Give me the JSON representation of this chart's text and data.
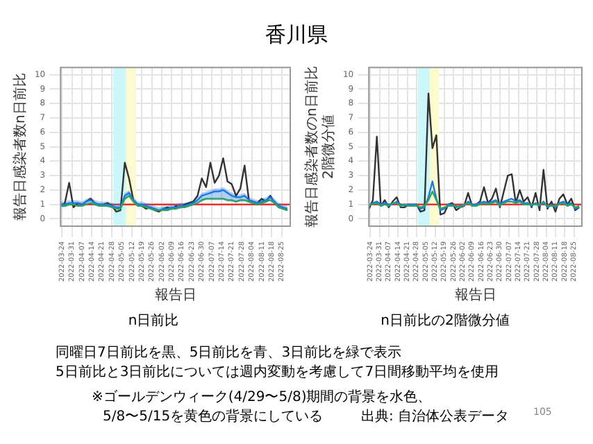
{
  "chart_data": [
    {
      "type": "line",
      "title": "香川県",
      "subtitle": "n日前比",
      "xlabel": "報告日",
      "ylabel": "報告日感染者数n日前比",
      "x": [
        "2022-03-23",
        "2022-03-26",
        "2022-03-29",
        "2022-04-01",
        "2022-04-04",
        "2022-04-07",
        "2022-04-10",
        "2022-04-13",
        "2022-04-16",
        "2022-04-19",
        "2022-04-22",
        "2022-04-25",
        "2022-04-28",
        "2022-05-01",
        "2022-05-04",
        "2022-05-07",
        "2022-05-10",
        "2022-05-13",
        "2022-05-16",
        "2022-05-19",
        "2022-05-22",
        "2022-05-25",
        "2022-05-28",
        "2022-05-31",
        "2022-06-03",
        "2022-06-06",
        "2022-06-09",
        "2022-06-12",
        "2022-06-15",
        "2022-06-18",
        "2022-06-21",
        "2022-06-24",
        "2022-06-27",
        "2022-06-30",
        "2022-07-03",
        "2022-07-06",
        "2022-07-09",
        "2022-07-12",
        "2022-07-15",
        "2022-07-18",
        "2022-07-21",
        "2022-07-24",
        "2022-07-27",
        "2022-07-30",
        "2022-08-02",
        "2022-08-05",
        "2022-08-08",
        "2022-08-11",
        "2022-08-14",
        "2022-08-17",
        "2022-08-20",
        "2022-08-23",
        "2022-08-26",
        "2022-08-29"
      ],
      "series": [
        {
          "color": "#333333",
          "values": [
            0.9,
            1.1,
            2.5,
            0.8,
            1.1,
            1.0,
            1.2,
            1.4,
            1.1,
            0.9,
            1.0,
            1.1,
            0.9,
            0.5,
            0.6,
            3.9,
            2.8,
            1.3,
            1.0,
            0.9,
            0.7,
            0.8,
            0.6,
            0.5,
            0.7,
            0.8,
            0.7,
            0.9,
            0.8,
            1.0,
            1.1,
            1.2,
            1.6,
            2.8,
            2.2,
            3.9,
            2.5,
            3.0,
            4.2,
            2.6,
            2.4,
            1.6,
            2.1,
            3.7,
            1.3,
            1.2,
            1.1,
            1.4,
            1.2,
            1.6,
            1.1,
            0.8,
            0.7,
            0.6
          ]
        },
        {
          "color": "#1e78e6",
          "values": [
            1.0,
            1.0,
            1.1,
            1.1,
            1.1,
            1.0,
            1.2,
            1.3,
            1.1,
            1.0,
            1.0,
            1.0,
            0.9,
            0.8,
            0.8,
            1.6,
            1.8,
            1.3,
            1.0,
            1.0,
            0.9,
            0.8,
            0.7,
            0.6,
            0.7,
            0.7,
            0.8,
            0.8,
            0.9,
            0.9,
            1.0,
            1.1,
            1.3,
            1.6,
            1.7,
            1.8,
            1.9,
            1.9,
            2.0,
            1.8,
            1.6,
            1.5,
            1.5,
            1.6,
            1.3,
            1.2,
            1.1,
            1.2,
            1.3,
            1.5,
            1.2,
            0.9,
            0.8,
            0.7
          ],
          "lower": [
            0.8,
            0.8,
            0.9,
            0.9,
            0.9,
            0.9,
            1.0,
            1.1,
            0.9,
            0.9,
            0.9,
            0.8,
            0.8,
            0.7,
            0.7,
            1.3,
            1.5,
            1.1,
            0.9,
            0.8,
            0.7,
            0.7,
            0.6,
            0.5,
            0.6,
            0.6,
            0.7,
            0.7,
            0.7,
            0.8,
            0.9,
            0.9,
            1.1,
            1.2,
            1.3,
            1.3,
            1.3,
            1.3,
            1.3,
            1.2,
            1.2,
            1.1,
            1.2,
            1.2,
            1.1,
            1.0,
            0.9,
            1.0,
            1.1,
            1.3,
            1.0,
            0.8,
            0.7,
            0.6
          ],
          "upper": [
            1.2,
            1.2,
            1.3,
            1.3,
            1.3,
            1.2,
            1.4,
            1.5,
            1.3,
            1.2,
            1.2,
            1.2,
            1.1,
            1.0,
            1.0,
            1.8,
            2.0,
            1.5,
            1.2,
            1.2,
            1.1,
            1.0,
            0.9,
            0.8,
            0.9,
            0.9,
            1.0,
            1.0,
            1.1,
            1.1,
            1.2,
            1.3,
            1.5,
            1.8,
            1.9,
            2.0,
            2.1,
            2.1,
            2.2,
            2.0,
            1.8,
            1.7,
            1.7,
            1.8,
            1.5,
            1.4,
            1.3,
            1.4,
            1.5,
            1.7,
            1.4,
            1.1,
            1.0,
            0.9
          ]
        },
        {
          "color": "#2ca25f",
          "values": [
            0.9,
            0.9,
            1.0,
            1.0,
            0.9,
            0.9,
            1.0,
            1.1,
            1.0,
            0.9,
            0.9,
            0.9,
            0.8,
            0.7,
            0.7,
            1.4,
            1.6,
            1.2,
            0.9,
            0.9,
            0.8,
            0.7,
            0.6,
            0.6,
            0.6,
            0.6,
            0.7,
            0.7,
            0.8,
            0.8,
            0.9,
            1.0,
            1.1,
            1.3,
            1.4,
            1.4,
            1.4,
            1.4,
            1.4,
            1.3,
            1.3,
            1.2,
            1.3,
            1.3,
            1.2,
            1.1,
            1.0,
            1.1,
            1.2,
            1.3,
            1.1,
            0.8,
            0.7,
            0.6
          ]
        }
      ],
      "xlim": [
        "2022-03-23",
        "2022-08-31"
      ],
      "xticks": [
        "2022-03-24",
        "2022-03-31",
        "2022-04-07",
        "2022-04-14",
        "2022-04-21",
        "2022-04-28",
        "2022-05-05",
        "2022-05-12",
        "2022-05-19",
        "2022-05-26",
        "2022-06-02",
        "2022-06-09",
        "2022-06-16",
        "2022-06-23",
        "2022-06-30",
        "2022-07-07",
        "2022-07-14",
        "2022-07-21",
        "2022-07-28",
        "2022-08-04",
        "2022-08-11",
        "2022-08-18",
        "2022-08-25"
      ],
      "ylim": [
        -0.5,
        10.5
      ],
      "yticks": [
        0,
        1,
        2,
        3,
        4,
        5,
        6,
        7,
        8,
        9,
        10
      ],
      "grid": true,
      "ref_lines": [
        {
          "axis": "y",
          "value": 1,
          "color": "#e8322d"
        }
      ],
      "bands": [
        {
          "axis": "x",
          "from": "2022-04-29",
          "to": "2022-05-08",
          "color": "#ccf7fa"
        },
        {
          "axis": "x",
          "from": "2022-05-08",
          "to": "2022-05-15",
          "color": "#fbfbcf"
        }
      ]
    },
    {
      "type": "line",
      "subtitle": "n日前比の2階微分値",
      "xlabel": "報告日",
      "ylabel": "報告日感染者数のn日前比\n2階微分値",
      "x": [
        "2022-03-23",
        "2022-03-26",
        "2022-03-29",
        "2022-04-01",
        "2022-04-04",
        "2022-04-07",
        "2022-04-10",
        "2022-04-13",
        "2022-04-16",
        "2022-04-19",
        "2022-04-22",
        "2022-04-25",
        "2022-04-28",
        "2022-05-01",
        "2022-05-04",
        "2022-05-07",
        "2022-05-10",
        "2022-05-13",
        "2022-05-16",
        "2022-05-19",
        "2022-05-22",
        "2022-05-25",
        "2022-05-28",
        "2022-05-31",
        "2022-06-03",
        "2022-06-06",
        "2022-06-09",
        "2022-06-12",
        "2022-06-15",
        "2022-06-18",
        "2022-06-21",
        "2022-06-24",
        "2022-06-27",
        "2022-06-30",
        "2022-07-03",
        "2022-07-06",
        "2022-07-09",
        "2022-07-12",
        "2022-07-15",
        "2022-07-18",
        "2022-07-21",
        "2022-07-24",
        "2022-07-27",
        "2022-07-30",
        "2022-08-02",
        "2022-08-05",
        "2022-08-08",
        "2022-08-11",
        "2022-08-14",
        "2022-08-17",
        "2022-08-20",
        "2022-08-23",
        "2022-08-26",
        "2022-08-29"
      ],
      "series": [
        {
          "color": "#333333",
          "values": [
            0.7,
            1.3,
            5.7,
            0.9,
            1.3,
            0.8,
            1.2,
            1.5,
            0.8,
            0.8,
            1.0,
            0.9,
            1.0,
            0.5,
            0.6,
            8.7,
            4.9,
            5.8,
            0.3,
            0.4,
            1.0,
            1.1,
            0.6,
            0.8,
            0.9,
            1.8,
            0.9,
            1.0,
            1.2,
            2.2,
            1.1,
            1.4,
            2.1,
            0.8,
            1.9,
            3.0,
            3.1,
            1.1,
            2.0,
            1.2,
            1.5,
            0.8,
            1.8,
            0.6,
            3.4,
            0.7,
            1.2,
            0.5,
            1.4,
            1.7,
            1.0,
            1.4,
            0.6,
            0.8
          ]
        },
        {
          "color": "#1e78e6",
          "values": [
            0.9,
            1.1,
            1.2,
            1.0,
            1.1,
            1.0,
            1.0,
            1.2,
            1.0,
            0.9,
            1.0,
            1.0,
            1.0,
            0.7,
            0.8,
            1.5,
            2.6,
            1.4,
            0.6,
            0.7,
            1.0,
            1.0,
            0.8,
            0.9,
            0.9,
            1.2,
            1.0,
            1.0,
            1.1,
            1.2,
            1.1,
            1.2,
            1.3,
            1.0,
            1.2,
            1.3,
            1.4,
            1.2,
            1.3,
            1.1,
            1.1,
            0.9,
            1.1,
            0.9,
            1.2,
            0.8,
            1.0,
            0.8,
            1.1,
            1.2,
            1.0,
            1.1,
            0.7,
            0.8
          ]
        },
        {
          "color": "#2ca25f",
          "values": [
            1.0,
            1.0,
            1.1,
            0.9,
            1.0,
            0.9,
            1.1,
            1.1,
            0.9,
            1.0,
            0.9,
            0.9,
            0.9,
            0.8,
            0.9,
            1.3,
            1.9,
            1.3,
            0.7,
            0.8,
            0.9,
            0.9,
            0.9,
            0.8,
            1.0,
            1.1,
            0.9,
            0.9,
            1.0,
            1.1,
            1.0,
            1.1,
            1.2,
            0.9,
            1.1,
            1.2,
            1.2,
            1.1,
            1.2,
            1.0,
            1.0,
            1.0,
            1.0,
            1.0,
            1.1,
            0.9,
            0.9,
            0.9,
            1.0,
            1.1,
            0.9,
            1.0,
            0.8,
            0.9
          ]
        }
      ],
      "xlim": [
        "2022-03-23",
        "2022-08-31"
      ],
      "xticks": [
        "2022-03-24",
        "2022-03-31",
        "2022-04-07",
        "2022-04-14",
        "2022-04-21",
        "2022-04-28",
        "2022-05-05",
        "2022-05-12",
        "2022-05-19",
        "2022-05-26",
        "2022-06-02",
        "2022-06-09",
        "2022-06-16",
        "2022-06-23",
        "2022-06-30",
        "2022-07-07",
        "2022-07-14",
        "2022-07-21",
        "2022-07-28",
        "2022-08-04",
        "2022-08-11",
        "2022-08-18",
        "2022-08-25"
      ],
      "ylim": [
        -0.5,
        10.5
      ],
      "yticks": [
        0,
        1,
        2,
        3,
        4,
        5,
        6,
        7,
        8,
        9,
        10
      ],
      "grid": true,
      "ref_lines": [
        {
          "axis": "y",
          "value": 1,
          "color": "#e8322d"
        }
      ],
      "bands": [
        {
          "axis": "x",
          "from": "2022-04-29",
          "to": "2022-05-08",
          "color": "#ccf7fa"
        },
        {
          "axis": "x",
          "from": "2022-05-08",
          "to": "2022-05-15",
          "color": "#fbfbcf"
        }
      ],
      "annotations": [
        "同曜日7日前比を黒、5日前比を青、3日前比を緑で表示",
        "5日前比と3日前比については週内変動を考慮して7日間移動平均を使用",
        "※ゴールデンウィーク(4/29〜5/8)期間の背景を水色、",
        "5/8〜5/15を黄色の背景にしている",
        "出典: 自治体公表データ",
        "105"
      ]
    }
  ]
}
